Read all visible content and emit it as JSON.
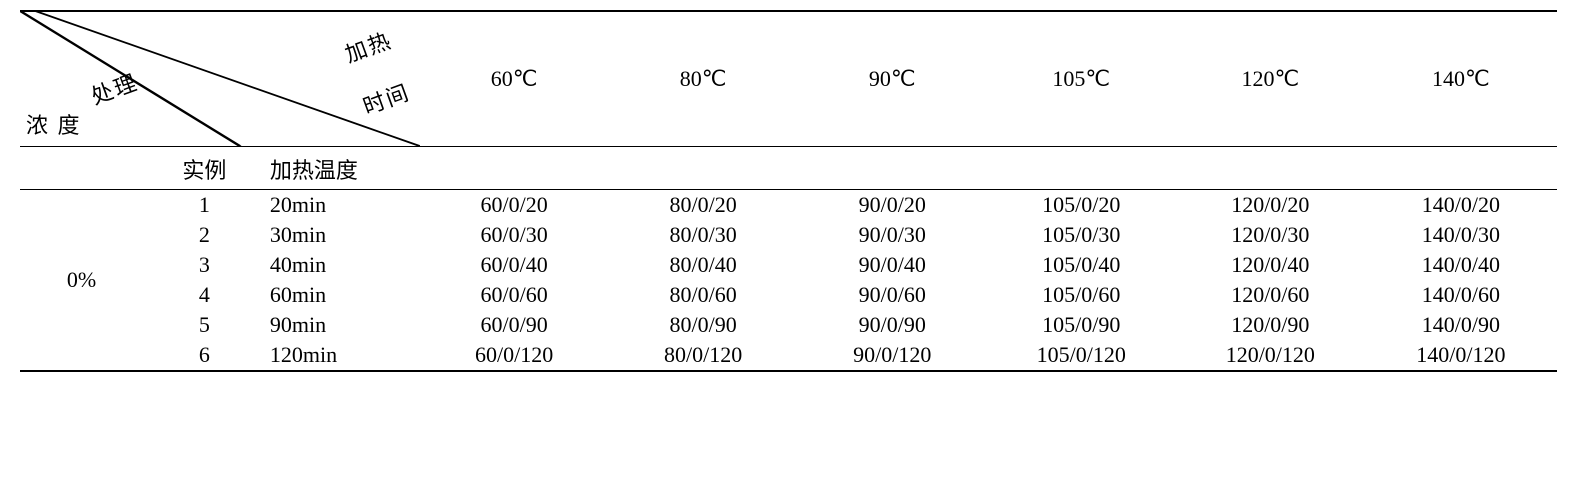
{
  "corner": {
    "label_top": "加热",
    "label_mid": "处理",
    "label_right": "时间",
    "label_bottom": "浓 度"
  },
  "temp_headers": [
    "60℃",
    "80℃",
    "90℃",
    "105℃",
    "120℃",
    "140℃"
  ],
  "section": {
    "example_label": "实例",
    "heat_temp_label": "加热温度"
  },
  "concentration_label": "0%",
  "rows": [
    {
      "idx": "1",
      "time": "20min",
      "cells": [
        "60/0/20",
        "80/0/20",
        "90/0/20",
        "105/0/20",
        "120/0/20",
        "140/0/20"
      ]
    },
    {
      "idx": "2",
      "time": "30min",
      "cells": [
        "60/0/30",
        "80/0/30",
        "90/0/30",
        "105/0/30",
        "120/0/30",
        "140/0/30"
      ]
    },
    {
      "idx": "3",
      "time": "40min",
      "cells": [
        "60/0/40",
        "80/0/40",
        "90/0/40",
        "105/0/40",
        "120/0/40",
        "140/0/40"
      ]
    },
    {
      "idx": "4",
      "time": "60min",
      "cells": [
        "60/0/60",
        "80/0/60",
        "90/0/60",
        "105/0/60",
        "120/0/60",
        "140/0/60"
      ]
    },
    {
      "idx": "5",
      "time": "90min",
      "cells": [
        "60/0/90",
        "80/0/90",
        "90/0/90",
        "105/0/90",
        "120/0/90",
        "140/0/90"
      ]
    },
    {
      "idx": "6",
      "time": "120min",
      "cells": [
        "60/0/120",
        "80/0/120",
        "90/0/120",
        "105/0/120",
        "120/0/120",
        "140/0/120"
      ]
    }
  ],
  "style": {
    "font_size_pt": 16,
    "border_color": "#000000",
    "background_color": "#ffffff",
    "text_color": "#000000",
    "col_widths_pct": [
      8,
      8,
      10,
      12.3,
      12.3,
      12.3,
      12.3,
      12.3,
      12.5
    ]
  }
}
